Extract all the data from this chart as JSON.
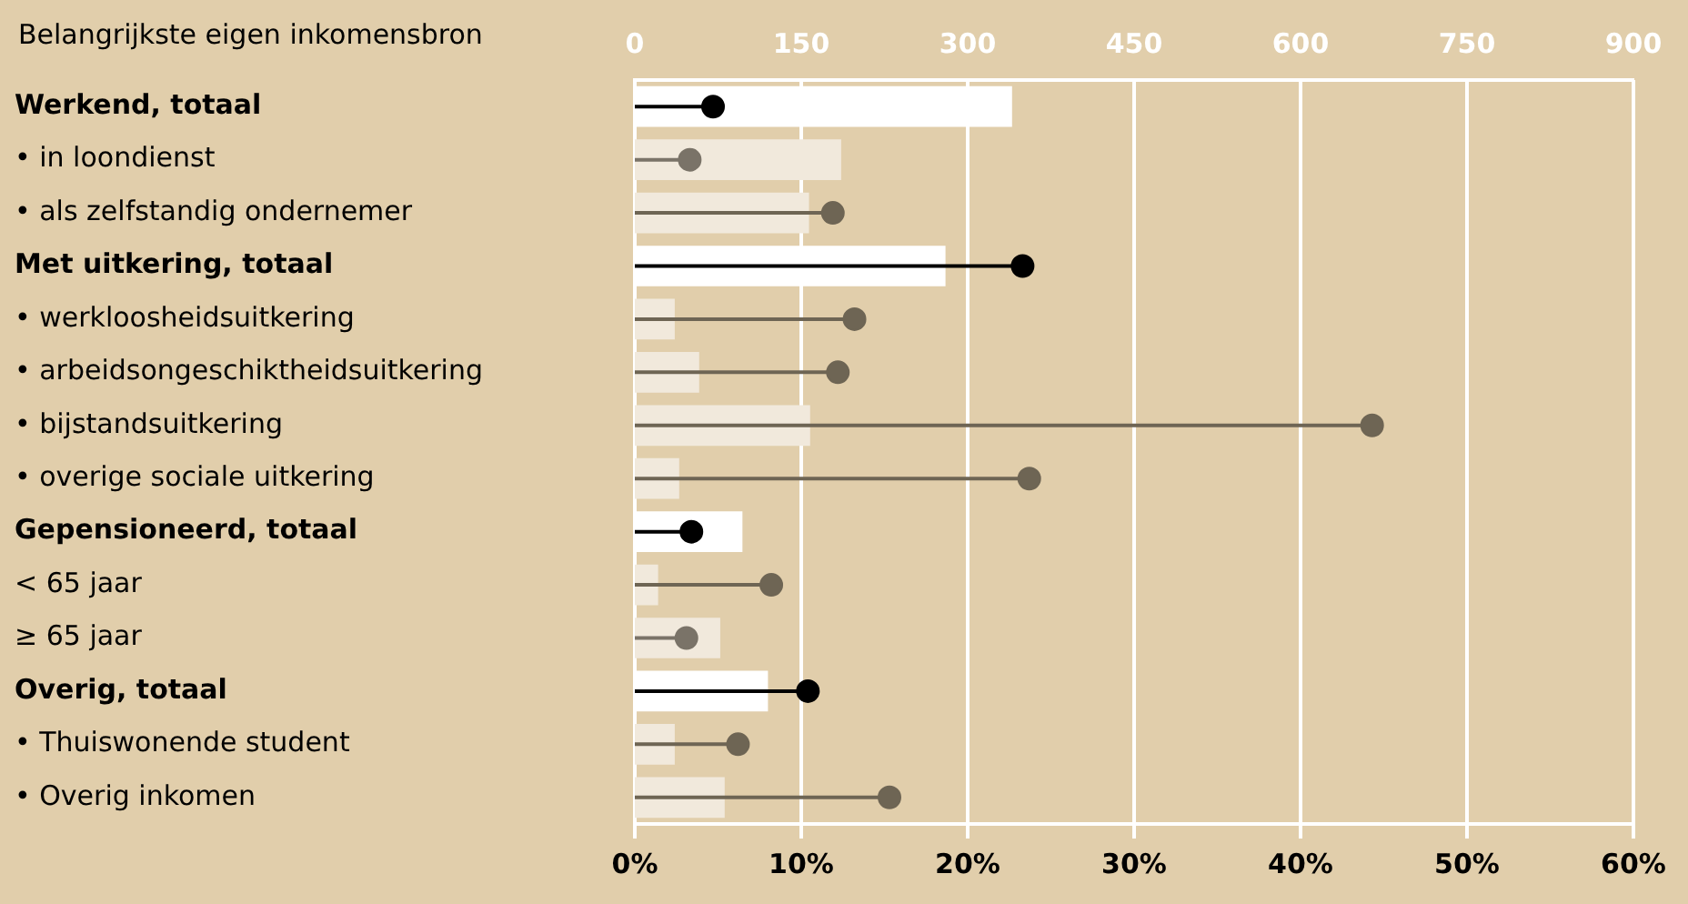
{
  "chart_data": {
    "type": "bar",
    "orientation": "horizontal",
    "ylabel": "Belangrijkste eigen inkomensbron",
    "categories": [
      "Werkend, totaal",
      "• in loondienst",
      "• als zelfstandig ondernemer",
      "Met uitkering, totaal",
      "• werkloosheidsuitkering",
      "• arbeidsongeschiktheidsuitkering",
      "• bijstandsuitkering",
      "• overige sociale uitkering",
      "Gepensioneerd, totaal",
      "< 65 jaar",
      "≥ 65 jaar",
      "Overig, totaal",
      "• Thuiswonende student",
      "• Overig inkomen"
    ],
    "series": [
      {
        "axis": "x2",
        "colors": [
          "#ffffff",
          "#f1e9dc",
          "#f1e9dc",
          "#ffffff",
          "#f1e9dc",
          "#f1e9dc",
          "#f1e9dc",
          "#f1e9dc",
          "#ffffff",
          "#f1e9dc",
          "#f1e9dc",
          "#ffffff",
          "#f1e9dc",
          "#f1e9dc"
        ],
        "values": [
          340,
          186,
          157,
          280,
          36,
          58,
          158,
          40,
          97,
          21,
          77,
          120,
          36,
          81
        ]
      },
      {
        "type": "lollipop",
        "colors": [
          "#000000",
          "#7a7368",
          "#6e6554",
          "#000000",
          "#6e6554",
          "#6e6554",
          "#6e6554",
          "#6e6554",
          "#000000",
          "#6e6554",
          "#7a7368",
          "#000000",
          "#6e6554",
          "#6e6554"
        ],
        "values": [
          4.7,
          3.3,
          11.9,
          23.3,
          13.2,
          12.2,
          44.3,
          23.7,
          3.4,
          8.2,
          3.1,
          10.4,
          6.2,
          15.3
        ]
      }
    ],
    "xlim": [
      0,
      60
    ],
    "xticks": [
      {
        "value": 0,
        "label": "0%"
      },
      {
        "value": 10,
        "label": "10%"
      },
      {
        "value": 20,
        "label": "20%"
      },
      {
        "value": 30,
        "label": "30%"
      },
      {
        "value": 40,
        "label": "40%"
      },
      {
        "value": 50,
        "label": "50%"
      },
      {
        "value": 60,
        "label": "60%"
      }
    ],
    "x2lim": [
      0,
      900
    ],
    "x2ticks": [
      0,
      150,
      300,
      450,
      600,
      750,
      900
    ],
    "grid": "x",
    "legend": false
  }
}
